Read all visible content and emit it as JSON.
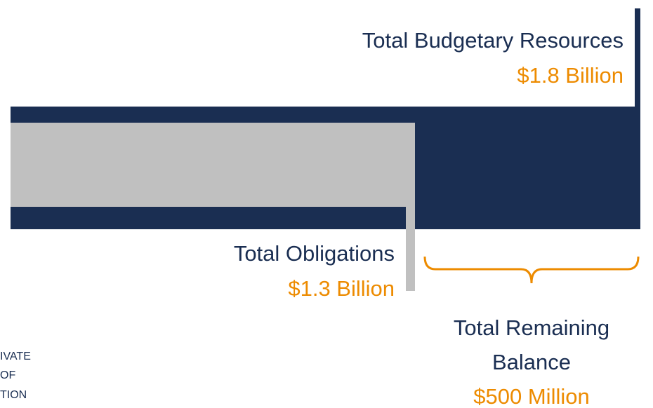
{
  "budget": {
    "label": "Total Budgetary Resources",
    "amount": "$1.8 Billion"
  },
  "obligations": {
    "label": "Total Obligations",
    "amount": "$1.3 Billion"
  },
  "remaining": {
    "label_lines": [
      "Total Remaining",
      "Balance"
    ],
    "amount": "$500 Million"
  },
  "side_note": [
    "IVATE",
    "OF",
    "TION"
  ]
}
